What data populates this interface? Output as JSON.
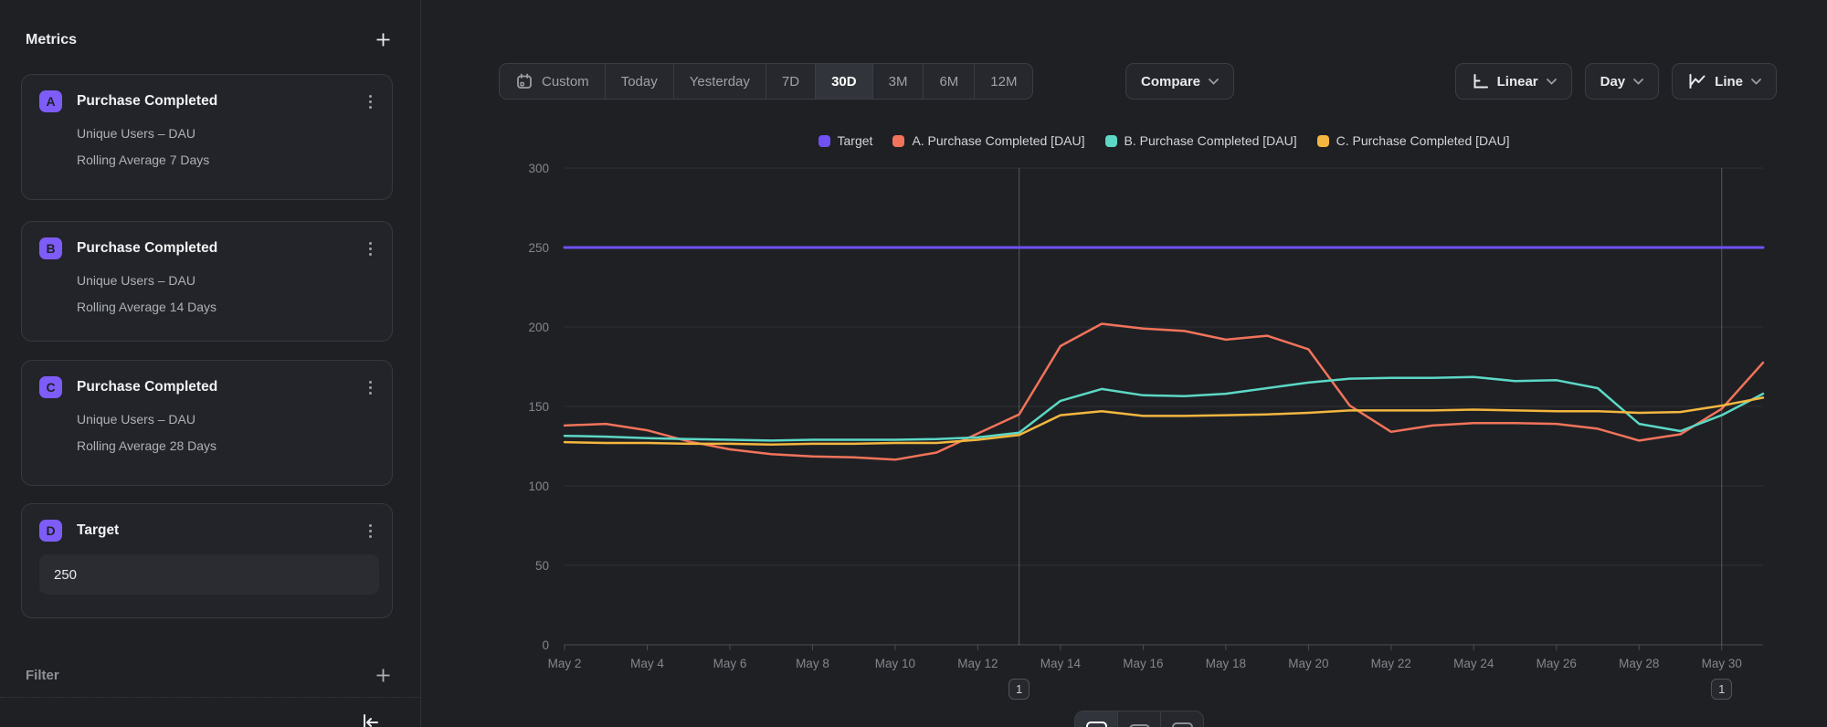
{
  "sidebar": {
    "title": "Metrics",
    "metrics": [
      {
        "letter": "A",
        "title": "Purchase Completed",
        "measure": "Unique Users – DAU",
        "transform": "Rolling Average 7 Days"
      },
      {
        "letter": "B",
        "title": "Purchase Completed",
        "measure": "Unique Users – DAU",
        "transform": "Rolling Average 14 Days"
      },
      {
        "letter": "C",
        "title": "Purchase Completed",
        "measure": "Unique Users – DAU",
        "transform": "Rolling Average 28 Days"
      }
    ],
    "target_card": {
      "letter": "D",
      "title": "Target",
      "value": "250"
    },
    "filter": {
      "title": "Filter"
    }
  },
  "toolbar": {
    "date_ranges": [
      {
        "label": "Custom",
        "icon": "calendar-icon",
        "active": false
      },
      {
        "label": "Today",
        "active": false
      },
      {
        "label": "Yesterday",
        "active": false
      },
      {
        "label": "7D",
        "active": false
      },
      {
        "label": "30D",
        "active": true
      },
      {
        "label": "3M",
        "active": false
      },
      {
        "label": "6M",
        "active": false
      },
      {
        "label": "12M",
        "active": false
      }
    ],
    "compare": {
      "label": "Compare"
    },
    "scale": {
      "label": "Linear",
      "icon": "axis-linear-icon"
    },
    "granularity": {
      "label": "Day"
    },
    "chart_type": {
      "label": "Line",
      "icon": "line-chart-icon"
    }
  },
  "colors": {
    "accent_purple": "#7E5CF8",
    "target_line": "#6F51F4",
    "series_a_orange": "#F1735A",
    "series_b_teal": "#5CD8C5",
    "series_c_yellow": "#F3B63F"
  },
  "bottom_controls": {
    "options": [
      {
        "name": "chart-size-large",
        "active": true
      },
      {
        "name": "chart-size-medium",
        "active": false
      },
      {
        "name": "chart-size-small",
        "active": false
      }
    ]
  },
  "chart_data": {
    "type": "line",
    "title": "",
    "legend_position": "top-center",
    "grid": "horizontal",
    "y_axis": {
      "min": 0,
      "max": 300,
      "ticks": [
        0,
        50,
        100,
        150,
        200,
        250,
        300
      ]
    },
    "x_axis": {
      "unit": "day",
      "day_start": 2,
      "day_end": 31,
      "tick_days": [
        2,
        4,
        6,
        8,
        10,
        12,
        14,
        16,
        18,
        20,
        22,
        24,
        26,
        28,
        30
      ],
      "tick_labels": [
        "May 2",
        "May 4",
        "May 6",
        "May 8",
        "May 10",
        "May 12",
        "May 14",
        "May 16",
        "May 18",
        "May 20",
        "May 22",
        "May 24",
        "May 26",
        "May 28",
        "May 30"
      ]
    },
    "series": [
      {
        "name": "Target",
        "color": "#6F51F4",
        "width": 3,
        "values": [
          250,
          250,
          250,
          250,
          250,
          250,
          250,
          250,
          250,
          250,
          250,
          250,
          250,
          250,
          250,
          250,
          250,
          250,
          250,
          250,
          250,
          250,
          250,
          250,
          250,
          250,
          250,
          250,
          250,
          250
        ]
      },
      {
        "name": "A. Purchase Completed [DAU]",
        "color": "#F1735A",
        "width": 2.5,
        "values": [
          138,
          139,
          135,
          128,
          123,
          120,
          118.5,
          118,
          116.5,
          121,
          133,
          145,
          188,
          202,
          199,
          197.5,
          192,
          194.5,
          186,
          150.5,
          134,
          138,
          139.5,
          139.5,
          139,
          136,
          128.5,
          132.5,
          148.5,
          177.5
        ]
      },
      {
        "name": "B. Purchase Completed [DAU]",
        "color": "#5CD8C5",
        "width": 2.5,
        "values": [
          131.5,
          131,
          130,
          129.5,
          129,
          128.5,
          129,
          129,
          129,
          129.5,
          130.5,
          133.5,
          153.5,
          161,
          157,
          156.5,
          158,
          161.5,
          165,
          167.5,
          168,
          168,
          168.5,
          166,
          166.5,
          161.5,
          139,
          134.5,
          144.5,
          158
        ]
      },
      {
        "name": "C. Purchase Completed [DAU]",
        "color": "#F3B63F",
        "width": 2.5,
        "values": [
          127.5,
          127,
          127,
          126.5,
          126.5,
          126,
          126.5,
          126.5,
          127,
          127,
          129,
          132,
          144.5,
          147,
          144,
          144,
          144.5,
          145,
          146,
          147.5,
          147.5,
          147.5,
          148,
          147.5,
          147,
          147,
          146,
          146.5,
          150.5,
          155.5
        ]
      }
    ],
    "annotations": [
      {
        "day": 13,
        "label": "1"
      },
      {
        "day": 30,
        "label": "1"
      }
    ]
  }
}
